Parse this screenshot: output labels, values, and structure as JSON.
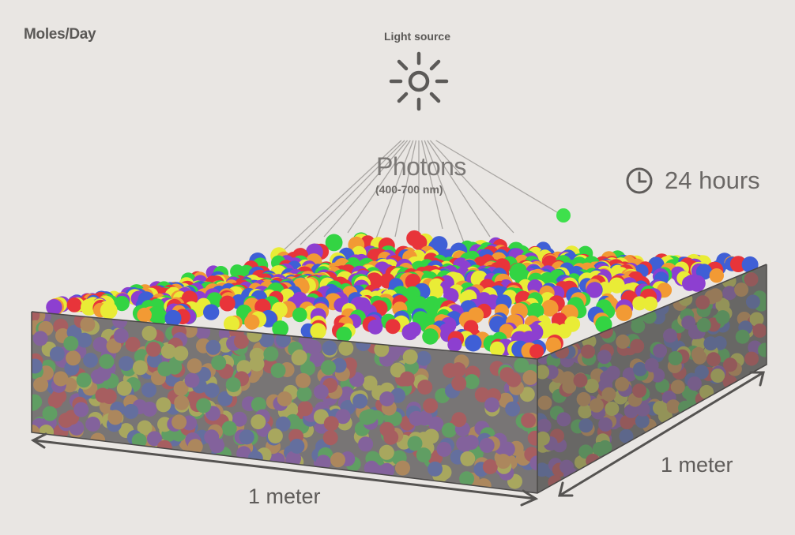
{
  "title": "Moles/Day",
  "light_source": {
    "label": "Light source",
    "icon": "sun-icon"
  },
  "photons": {
    "label": "Photons",
    "range": "(400-700 nm)"
  },
  "duration": {
    "label": "24 hours",
    "icon": "clock-icon"
  },
  "dimensions": {
    "front": "1 meter",
    "side": "1 meter"
  },
  "colors": {
    "background": "#e9e6e3",
    "text": "#5a5856",
    "box_face": "#6f6d6c",
    "photon_palette": [
      "#e8343a",
      "#3f5fd6",
      "#33d443",
      "#f29a34",
      "#8d3fd0",
      "#e9ec36"
    ]
  }
}
